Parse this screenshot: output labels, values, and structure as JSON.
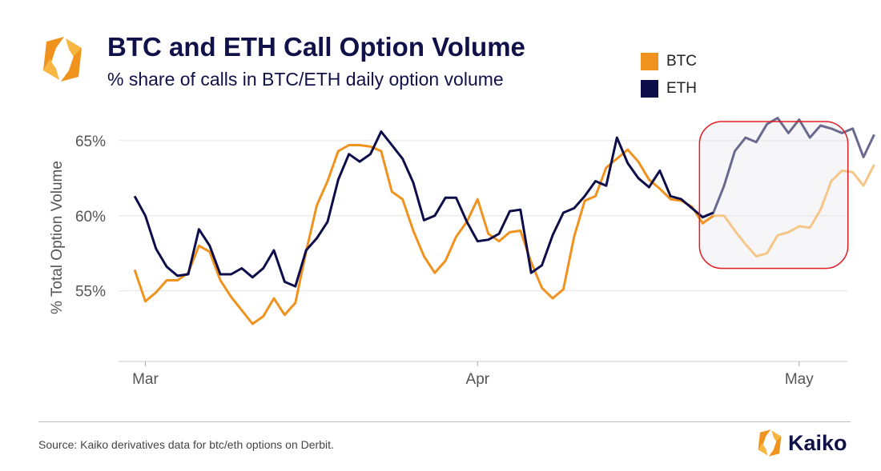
{
  "title": "BTC and ETH Call Option Volume",
  "subtitle": "% share of calls in BTC/ETH daily option volume",
  "source": "Source: Kaiko derivatives data for btc/eth options on Derbit.",
  "brand": "Kaiko",
  "legend": [
    {
      "label": "BTC",
      "color": "#f0921e"
    },
    {
      "label": "ETH",
      "color": "#0d0d4a"
    }
  ],
  "chart_data": {
    "type": "line",
    "ylabel": "% Total Option Volume",
    "ylim": [
      50.3,
      66.8
    ],
    "yticks": [
      55,
      60,
      65
    ],
    "ytick_labels": [
      "55%",
      "60%",
      "65%"
    ],
    "x_domain": [
      -1.5,
      66.5
    ],
    "xticks": [
      {
        "label": "Mar",
        "x": 1
      },
      {
        "label": "Apr",
        "x": 32
      },
      {
        "label": "May",
        "x": 62
      }
    ],
    "grid": true,
    "highlight": {
      "x_range": [
        53,
        67
      ],
      "y_range": [
        56.6,
        66.8
      ],
      "outline_color": "#e01e26",
      "note": "most recent period highlighted"
    },
    "series": [
      {
        "name": "BTC",
        "color": "#f0921e",
        "faded_color": "#f5c688",
        "x_start": 0,
        "values": [
          56.4,
          54.3,
          54.9,
          55.7,
          55.7,
          56.2,
          58.0,
          57.6,
          55.7,
          54.6,
          53.7,
          52.8,
          53.3,
          54.5,
          53.4,
          54.2,
          57.6,
          60.7,
          62.3,
          64.3,
          64.7,
          64.7,
          64.6,
          64.3,
          61.6,
          61.1,
          59.0,
          57.3,
          56.2,
          57.0,
          58.6,
          59.6,
          61.1,
          58.8,
          58.3,
          58.9,
          59.0,
          56.9,
          55.2,
          54.5,
          55.1,
          58.6,
          61.0,
          61.3,
          63.2,
          63.8,
          64.4,
          63.6,
          62.4,
          61.8,
          61.1,
          61.0,
          60.6,
          59.5,
          60.0,
          60.0,
          59.0,
          58.1,
          57.3,
          57.5,
          58.7,
          58.9,
          59.3,
          59.2,
          60.4,
          62.3,
          63.0,
          62.9,
          62.0,
          63.4
        ]
      },
      {
        "name": "ETH",
        "color": "#0d0d4a",
        "faded_color": "#6a6a8e",
        "x_start": 0,
        "values": [
          61.3,
          60.0,
          57.8,
          56.6,
          56.0,
          56.1,
          59.1,
          58.0,
          56.1,
          56.1,
          56.5,
          55.9,
          56.5,
          57.7,
          55.6,
          55.3,
          57.7,
          58.5,
          59.6,
          62.4,
          64.1,
          63.6,
          64.1,
          65.6,
          64.7,
          63.8,
          62.2,
          59.7,
          60.0,
          61.2,
          61.2,
          59.6,
          58.3,
          58.4,
          58.8,
          60.3,
          60.4,
          56.2,
          56.7,
          58.7,
          60.2,
          60.5,
          61.3,
          62.3,
          62.0,
          65.2,
          63.5,
          62.5,
          61.9,
          63.0,
          61.3,
          61.1,
          60.5,
          59.9,
          60.2,
          62.0,
          64.3,
          65.2,
          64.9,
          66.1,
          66.5,
          65.5,
          66.4,
          65.2,
          66.0,
          65.8,
          65.5,
          65.8,
          63.9,
          65.4
        ]
      }
    ]
  }
}
